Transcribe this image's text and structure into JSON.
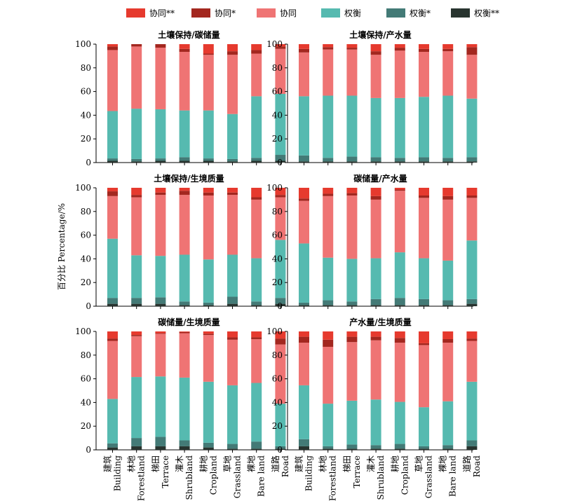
{
  "legend": [
    {
      "label": "协同**",
      "color": "#e63a2e"
    },
    {
      "label": "协同*",
      "color": "#a3271f"
    },
    {
      "label": "协同",
      "color": "#ef7474"
    },
    {
      "label": "权衡",
      "color": "#56bab0"
    },
    {
      "label": "权衡*",
      "color": "#437a76"
    },
    {
      "label": "权衡**",
      "color": "#28342f"
    }
  ],
  "y_axis_label": "百分比  Percentage/%",
  "categories": [
    {
      "cn": "建筑",
      "en": "Building"
    },
    {
      "cn": "林地",
      "en": "Forestland"
    },
    {
      "cn": "梯田",
      "en": "Terrace"
    },
    {
      "cn": "灌木",
      "en": "Shrubland"
    },
    {
      "cn": "耕地",
      "en": "Cropland"
    },
    {
      "cn": "草地",
      "en": "Grassland"
    },
    {
      "cn": "裸地",
      "en": "Bare land"
    },
    {
      "cn": "道路",
      "en": "Road"
    }
  ],
  "chart_data": [
    {
      "type": "bar",
      "stacked": true,
      "title": "土壤保持/碳储量",
      "ylim": [
        0,
        100
      ],
      "yticks": [
        0,
        20,
        40,
        60,
        80,
        100
      ],
      "categories": [
        "Building",
        "Forestland",
        "Terrace",
        "Shrubland",
        "Cropland",
        "Grassland",
        "Bare land",
        "Road"
      ],
      "series": [
        {
          "name": "权衡**",
          "values": [
            1.5,
            1,
            1.5,
            1.5,
            1.5,
            1,
            1.5,
            1.5
          ]
        },
        {
          "name": "权衡*",
          "values": [
            2,
            2,
            2,
            3,
            2,
            2,
            2.5,
            5
          ]
        },
        {
          "name": "权衡",
          "values": [
            40,
            42.5,
            41.5,
            39.5,
            40.5,
            38,
            52,
            51.5
          ]
        },
        {
          "name": "协同",
          "values": [
            51.5,
            52.5,
            52,
            49.5,
            47,
            50,
            36,
            38
          ]
        },
        {
          "name": "协同*",
          "values": [
            3,
            2,
            3,
            2.5,
            1,
            3,
            3,
            2
          ]
        },
        {
          "name": "协同**",
          "values": [
            2,
            0,
            0,
            4,
            8,
            6,
            5,
            2
          ]
        }
      ]
    },
    {
      "type": "bar",
      "stacked": true,
      "title": "土壤保持/产水量",
      "ylim": [
        0,
        100
      ],
      "yticks": [
        0,
        20,
        40,
        60,
        80,
        100
      ],
      "categories": [
        "Building",
        "Forestland",
        "Terrace",
        "Shrubland",
        "Cropland",
        "Grassland",
        "Bare land",
        "Road"
      ],
      "series": [
        {
          "name": "权衡**",
          "values": [
            1,
            1,
            1,
            1,
            1,
            1,
            1,
            1
          ]
        },
        {
          "name": "权衡*",
          "values": [
            5,
            3,
            4,
            3.5,
            3,
            3.5,
            3,
            3.5
          ]
        },
        {
          "name": "权衡",
          "values": [
            50,
            52.5,
            51.5,
            50,
            50.5,
            51,
            52.5,
            49.5
          ]
        },
        {
          "name": "协同",
          "values": [
            37,
            39,
            39,
            36.5,
            40,
            38,
            37.5,
            37
          ]
        },
        {
          "name": "协同*",
          "values": [
            3,
            2,
            1.5,
            3,
            2.5,
            2.5,
            2,
            6.5
          ]
        },
        {
          "name": "协同**",
          "values": [
            4,
            2.5,
            3,
            6,
            3,
            4,
            4,
            2.5
          ]
        }
      ]
    },
    {
      "type": "bar",
      "stacked": true,
      "title": "土壤保持/生境质量",
      "ylim": [
        0,
        100
      ],
      "yticks": [
        0,
        20,
        40,
        60,
        80,
        100
      ],
      "categories": [
        "Building",
        "Forestland",
        "Terrace",
        "Shrubland",
        "Cropland",
        "Grassland",
        "Bare land",
        "Road"
      ],
      "series": [
        {
          "name": "权衡**",
          "values": [
            2,
            2,
            2,
            1,
            1,
            2,
            1,
            2
          ]
        },
        {
          "name": "权衡*",
          "values": [
            5,
            5,
            5.5,
            3,
            2,
            6,
            3,
            5
          ]
        },
        {
          "name": "权衡",
          "values": [
            50,
            36,
            35,
            39.5,
            36.5,
            35.5,
            36.5,
            49
          ]
        },
        {
          "name": "协同",
          "values": [
            36,
            49,
            51.5,
            50.5,
            54,
            50.5,
            49.5,
            36
          ]
        },
        {
          "name": "协同*",
          "values": [
            4,
            2,
            2,
            3.5,
            2.5,
            2,
            2,
            2
          ]
        },
        {
          "name": "协同**",
          "values": [
            3,
            6,
            4,
            2.5,
            4,
            4,
            8,
            6
          ]
        }
      ]
    },
    {
      "type": "bar",
      "stacked": true,
      "title": "碳储量/产水量",
      "ylim": [
        0,
        100
      ],
      "yticks": [
        0,
        20,
        40,
        60,
        80,
        100
      ],
      "categories": [
        "Building",
        "Forestland",
        "Terrace",
        "Shrubland",
        "Cropland",
        "Grassland",
        "Bare land",
        "Road"
      ],
      "series": [
        {
          "name": "权衡**",
          "values": [
            1,
            1,
            1,
            1,
            1,
            1,
            1,
            2
          ]
        },
        {
          "name": "权衡*",
          "values": [
            2,
            4,
            3,
            5,
            6,
            5,
            4,
            4
          ]
        },
        {
          "name": "权衡",
          "values": [
            50,
            36,
            36,
            34.5,
            38.5,
            34.5,
            33.5,
            49.5
          ]
        },
        {
          "name": "协同",
          "values": [
            36,
            52,
            53.5,
            49.5,
            52,
            51,
            51.5,
            36
          ]
        },
        {
          "name": "协同*",
          "values": [
            2,
            2,
            2,
            3,
            1,
            2,
            3,
            2
          ]
        },
        {
          "name": "协同**",
          "values": [
            9,
            5,
            4.5,
            7,
            1.5,
            6.5,
            7,
            6.5
          ]
        }
      ]
    },
    {
      "type": "bar",
      "stacked": true,
      "title": "碳储量/生境质量",
      "ylim": [
        0,
        100
      ],
      "yticks": [
        0,
        20,
        40,
        60,
        80,
        100
      ],
      "categories": [
        "Building",
        "Forestland",
        "Terrace",
        "Shrubland",
        "Cropland",
        "Grassland",
        "Bare land",
        "Road"
      ],
      "series": [
        {
          "name": "权衡**",
          "values": [
            2,
            3,
            3,
            3,
            2,
            1,
            1,
            1
          ]
        },
        {
          "name": "权衡*",
          "values": [
            3.5,
            7,
            8,
            5,
            4,
            4,
            6,
            2
          ]
        },
        {
          "name": "权衡",
          "values": [
            37.5,
            51.5,
            51,
            53,
            51.5,
            49.5,
            49.5,
            36
          ]
        },
        {
          "name": "协同",
          "values": [
            49,
            34.5,
            36,
            37.5,
            39.5,
            38.5,
            37,
            50
          ]
        },
        {
          "name": "协同*",
          "values": [
            2,
            1,
            0.5,
            1,
            1,
            2,
            1.5,
            5
          ]
        },
        {
          "name": "协同**",
          "values": [
            6,
            3,
            1.5,
            0.5,
            2,
            5,
            5,
            6
          ]
        }
      ]
    },
    {
      "type": "bar",
      "stacked": true,
      "title": "产水量/生境质量",
      "ylim": [
        0,
        100
      ],
      "yticks": [
        0,
        20,
        40,
        60,
        80,
        100
      ],
      "categories": [
        "Building",
        "Forestland",
        "Terrace",
        "Shrubland",
        "Cropland",
        "Grassland",
        "Bare land",
        "Road"
      ],
      "series": [
        {
          "name": "权衡**",
          "values": [
            3,
            1,
            1,
            1,
            1,
            1,
            1,
            3
          ]
        },
        {
          "name": "权衡*",
          "values": [
            6,
            2,
            3.5,
            3,
            4,
            2,
            3,
            5
          ]
        },
        {
          "name": "权衡",
          "values": [
            45.5,
            36,
            37,
            38.5,
            35.5,
            33,
            37,
            49.5
          ]
        },
        {
          "name": "协同",
          "values": [
            36,
            48,
            49.5,
            50,
            50,
            52.5,
            49.5,
            34.5
          ]
        },
        {
          "name": "协同*",
          "values": [
            5,
            6,
            4.5,
            3,
            4,
            1.5,
            3,
            2
          ]
        },
        {
          "name": "协同**",
          "values": [
            4.5,
            7,
            4.5,
            4.5,
            5.5,
            10,
            6.5,
            6
          ]
        }
      ]
    }
  ]
}
